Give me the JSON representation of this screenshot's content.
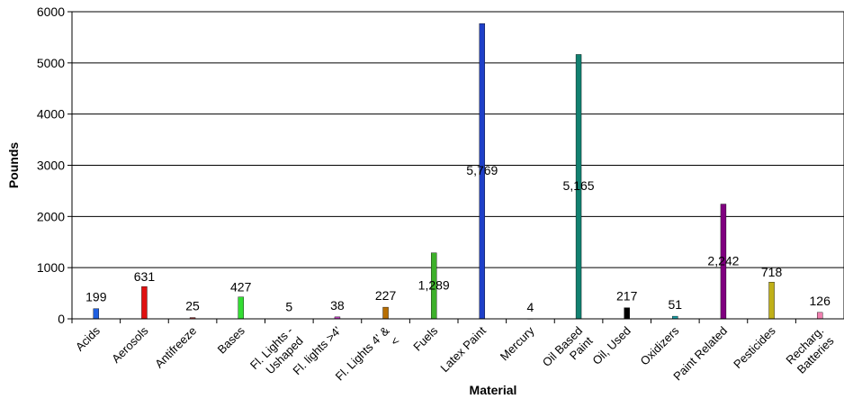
{
  "chart_data": {
    "type": "bar",
    "title": "",
    "xlabel": "Material",
    "ylabel": "Pounds",
    "ylim": [
      0,
      6000
    ],
    "yticks": [
      0,
      1000,
      2000,
      3000,
      4000,
      5000,
      6000
    ],
    "grid": true,
    "legend": "none",
    "categories": [
      {
        "label": [
          "Acids"
        ],
        "value": 199,
        "value_label": "199",
        "color": "#1F5FE0"
      },
      {
        "label": [
          "Aerosols"
        ],
        "value": 631,
        "value_label": "631",
        "color": "#E01010"
      },
      {
        "label": [
          "Antifreeze"
        ],
        "value": 25,
        "value_label": "25",
        "color": "#C04040"
      },
      {
        "label": [
          "Bases"
        ],
        "value": 427,
        "value_label": "427",
        "color": "#33DD33"
      },
      {
        "label": [
          "Fl. Lights -",
          "Ushaped"
        ],
        "value": 5,
        "value_label": "5",
        "color": "#808080"
      },
      {
        "label": [
          "Fl. lights >4'"
        ],
        "value": 38,
        "value_label": "38",
        "color": "#C040C0"
      },
      {
        "label": [
          "Fl. Lights 4' &",
          "<"
        ],
        "value": 227,
        "value_label": "227",
        "color": "#B86E00"
      },
      {
        "label": [
          "Fuels"
        ],
        "value": 1289,
        "value_label": "1,289",
        "color": "#3DB02A"
      },
      {
        "label": [
          "Latex Paint"
        ],
        "value": 5769,
        "value_label": "5,769",
        "color": "#1E3FC8"
      },
      {
        "label": [
          "Mercury"
        ],
        "value": 4,
        "value_label": "4",
        "color": "#808080"
      },
      {
        "label": [
          "Oil Based",
          "Paint"
        ],
        "value": 5165,
        "value_label": "5,165",
        "color": "#118070"
      },
      {
        "label": [
          "Oil, Used"
        ],
        "value": 217,
        "value_label": "217",
        "color": "#000000"
      },
      {
        "label": [
          "Oxidizers"
        ],
        "value": 51,
        "value_label": "51",
        "color": "#18A0A8"
      },
      {
        "label": [
          "Paint Related"
        ],
        "value": 2242,
        "value_label": "2,242",
        "color": "#800080"
      },
      {
        "label": [
          "Pesticides"
        ],
        "value": 718,
        "value_label": "718",
        "color": "#C0B018"
      },
      {
        "label": [
          "Recharg.",
          "Batteries"
        ],
        "value": 126,
        "value_label": "126",
        "color": "#F080B0"
      }
    ]
  }
}
